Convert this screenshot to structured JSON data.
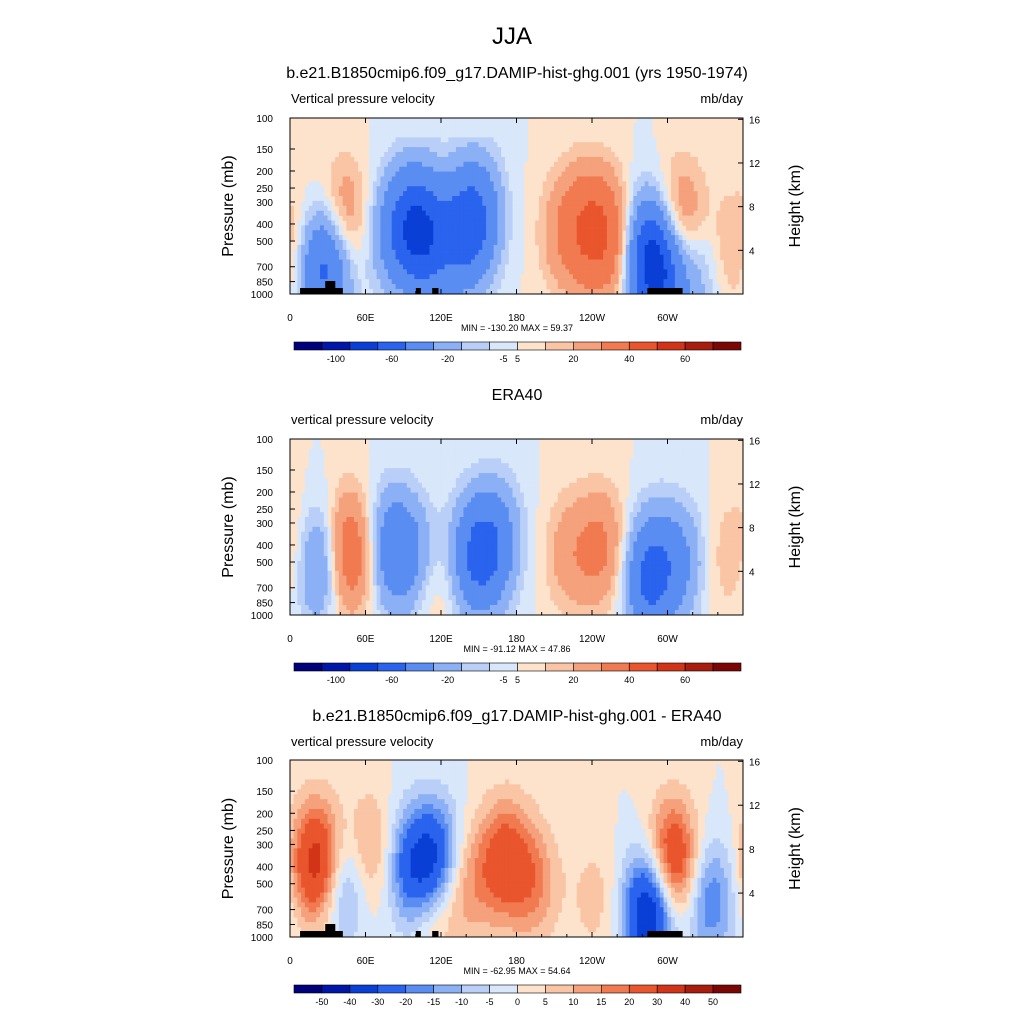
{
  "figure": {
    "title": "JJA",
    "variable_units": "mb/day"
  },
  "chart_data": [
    {
      "type": "heatmap",
      "title": "b.e21.B1850cmip6.f09_g17.DAMIP-hist-ghg.001 (yrs 1950-1974)",
      "left_subtitle": "Vertical pressure velocity",
      "right_subtitle": "mb/day",
      "ylabel": "Pressure (mb)",
      "y2label": "Height (km)",
      "y_ticks": [
        "100",
        "150",
        "200",
        "250",
        "300",
        "400",
        "500",
        "700",
        "850",
        "1000"
      ],
      "y2_ticks": [
        "4",
        "8",
        "12",
        "16"
      ],
      "x_ticks": [
        "0",
        "60E",
        "120E",
        "180",
        "120W",
        "60W"
      ],
      "xlim": [
        0,
        360
      ],
      "ylim": [
        1000,
        100
      ],
      "stats": "MIN = -130.20  MAX =  59.37",
      "colorbar_labels": [
        "-100",
        "-60",
        "-20",
        "-5",
        "5",
        "20",
        "40",
        "60"
      ],
      "features": [
        {
          "lon": 10,
          "p": 500,
          "v": 14
        },
        {
          "lon": 22,
          "p": 600,
          "v": -30
        },
        {
          "lon": 32,
          "p": 750,
          "v": -28
        },
        {
          "lon": 42,
          "p": 380,
          "v": 22
        },
        {
          "lon": 82,
          "p": 450,
          "v": -22
        },
        {
          "lon": 100,
          "p": 400,
          "v": -44
        },
        {
          "lon": 112,
          "p": 550,
          "v": -26
        },
        {
          "lon": 138,
          "p": 450,
          "v": -35
        },
        {
          "lon": 150,
          "p": 350,
          "v": -28
        },
        {
          "lon": 218,
          "p": 450,
          "v": 16
        },
        {
          "lon": 238,
          "p": 420,
          "v": 32
        },
        {
          "lon": 255,
          "p": 500,
          "v": 26
        },
        {
          "lon": 284,
          "p": 600,
          "v": -48
        },
        {
          "lon": 297,
          "p": 800,
          "v": -42
        },
        {
          "lon": 311,
          "p": 400,
          "v": 26
        },
        {
          "lon": 326,
          "p": 700,
          "v": -16
        },
        {
          "lon": 346,
          "p": 600,
          "v": 10
        }
      ]
    },
    {
      "type": "heatmap",
      "title": "ERA40",
      "left_subtitle": "vertical pressure velocity",
      "right_subtitle": "mb/day",
      "ylabel": "Pressure (mb)",
      "y2label": "Height (km)",
      "y_ticks": [
        "100",
        "150",
        "200",
        "250",
        "300",
        "400",
        "500",
        "700",
        "850",
        "1000"
      ],
      "y2_ticks": [
        "4",
        "8",
        "12",
        "16"
      ],
      "x_ticks": [
        "0",
        "60E",
        "120E",
        "180",
        "120W",
        "60W"
      ],
      "xlim": [
        0,
        360
      ],
      "ylim": [
        1000,
        100
      ],
      "stats": "MIN = -91.12  MAX =  47.86",
      "colorbar_labels": [
        "-100",
        "-60",
        "-20",
        "-5",
        "5",
        "20",
        "40",
        "60"
      ],
      "features": [
        {
          "lon": 6,
          "p": 400,
          "v": 10
        },
        {
          "lon": 24,
          "p": 500,
          "v": -32
        },
        {
          "lon": 46,
          "p": 450,
          "v": 38
        },
        {
          "lon": 82,
          "p": 420,
          "v": -32
        },
        {
          "lon": 102,
          "p": 500,
          "v": -18
        },
        {
          "lon": 112,
          "p": 650,
          "v": 12
        },
        {
          "lon": 148,
          "p": 470,
          "v": -40
        },
        {
          "lon": 165,
          "p": 380,
          "v": -24
        },
        {
          "lon": 222,
          "p": 450,
          "v": 14
        },
        {
          "lon": 248,
          "p": 420,
          "v": 22
        },
        {
          "lon": 284,
          "p": 640,
          "v": -36
        },
        {
          "lon": 296,
          "p": 500,
          "v": -18
        },
        {
          "lon": 316,
          "p": 500,
          "v": -15
        },
        {
          "lon": 340,
          "p": 500,
          "v": 7
        }
      ]
    },
    {
      "type": "heatmap",
      "title": "b.e21.B1850cmip6.f09_g17.DAMIP-hist-ghg.001 - ERA40",
      "left_subtitle": "vertical pressure velocity",
      "right_subtitle": "mb/day",
      "ylabel": "Pressure (mb)",
      "y2label": "Height (km)",
      "y_ticks": [
        "100",
        "150",
        "200",
        "250",
        "300",
        "400",
        "500",
        "700",
        "850",
        "1000"
      ],
      "y2_ticks": [
        "4",
        "8",
        "12",
        "16"
      ],
      "x_ticks": [
        "0",
        "60E",
        "120E",
        "180",
        "120W",
        "60W"
      ],
      "xlim": [
        0,
        360
      ],
      "ylim": [
        1000,
        100
      ],
      "stats": "MIN = -62.95  MAX =  54.64",
      "colorbar_labels": [
        "-50",
        "-40",
        "-30",
        "-20",
        "-15",
        "-10",
        "-5",
        "0",
        "5",
        "10",
        "15",
        "20",
        "30",
        "40",
        "50"
      ],
      "features": [
        {
          "lon": 22,
          "p": 380,
          "v": 38
        },
        {
          "lon": 42,
          "p": 500,
          "v": -20
        },
        {
          "lon": 62,
          "p": 330,
          "v": 14
        },
        {
          "lon": 98,
          "p": 420,
          "v": -28
        },
        {
          "lon": 113,
          "p": 600,
          "v": 20
        },
        {
          "lon": 118,
          "p": 400,
          "v": -38
        },
        {
          "lon": 134,
          "p": 500,
          "v": 16
        },
        {
          "lon": 160,
          "p": 450,
          "v": 8
        },
        {
          "lon": 172,
          "p": 350,
          "v": 20
        },
        {
          "lon": 194,
          "p": 500,
          "v": 15
        },
        {
          "lon": 242,
          "p": 600,
          "v": 7
        },
        {
          "lon": 286,
          "p": 720,
          "v": -44
        },
        {
          "lon": 304,
          "p": 380,
          "v": 34
        },
        {
          "lon": 334,
          "p": 620,
          "v": -20
        }
      ]
    }
  ],
  "colors": {
    "blue_scale": [
      "#00007a",
      "#0016a8",
      "#0a3fd6",
      "#2a63ee",
      "#5a8df2",
      "#8cb0f5",
      "#b9cff8",
      "#d9e7fb"
    ],
    "red_scale": [
      "#fde2cc",
      "#f9c5a5",
      "#f5a17c",
      "#f17a50",
      "#e9552d",
      "#d23418",
      "#a81d0d",
      "#7a0705"
    ]
  }
}
